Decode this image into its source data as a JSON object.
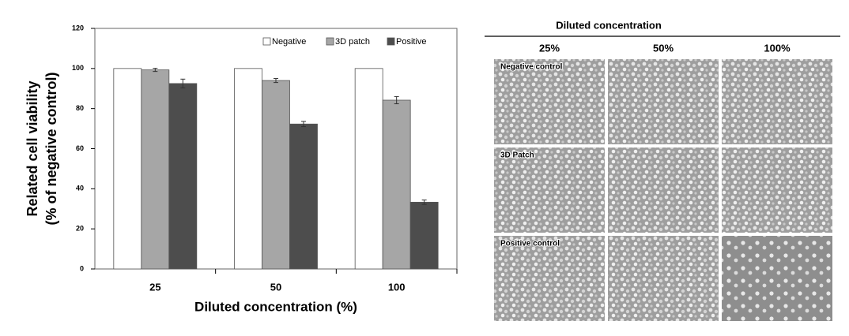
{
  "chart_data": {
    "type": "bar",
    "ylabel": [
      "Related cell viability",
      "(% of negative control)"
    ],
    "xlabel": "Diluted concentration (%)",
    "categories": [
      "25",
      "50",
      "100"
    ],
    "series": [
      {
        "name": "Negative",
        "color": "#ffffff",
        "values": [
          100,
          100,
          100
        ]
      },
      {
        "name": "3D patch",
        "color": "#a6a6a6",
        "values": [
          99.3,
          94,
          84.2
        ],
        "errors": [
          0.8,
          1,
          1.8
        ]
      },
      {
        "name": "Positive",
        "color": "#4d4d4d",
        "values": [
          92.5,
          72.3,
          33.3
        ],
        "errors": [
          2.2,
          1.3,
          1.1
        ]
      }
    ],
    "ylim": [
      0,
      120
    ],
    "yticks": [
      0,
      20,
      40,
      60,
      80,
      100,
      120
    ],
    "legend": "top-right"
  },
  "micrographs": {
    "title": "Diluted concentration",
    "columns": [
      "25%",
      "50%",
      "100%"
    ],
    "rows": [
      "Negative control",
      "3D Patch",
      "Positive control"
    ]
  }
}
